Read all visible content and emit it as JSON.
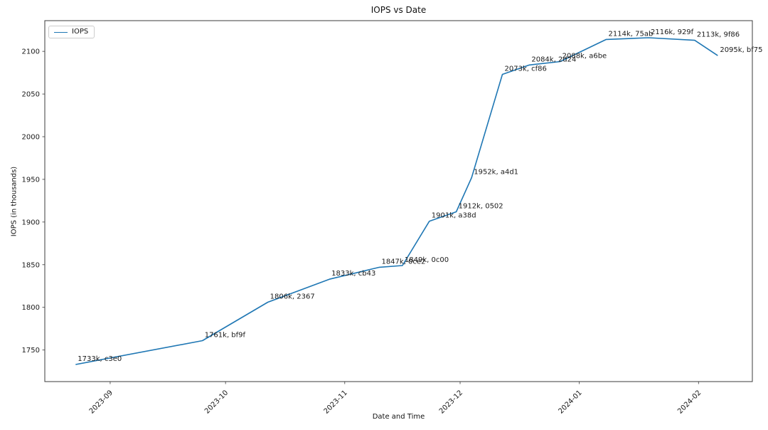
{
  "chart_data": {
    "type": "line",
    "title": "IOPS vs Date",
    "xlabel": "Date and Time",
    "ylabel": "IOPS (in thousands)",
    "legend": {
      "position": "upper-left",
      "entries": [
        {
          "label": "IOPS",
          "color": "#1f77b4"
        }
      ]
    },
    "line_color": "#1f77b4",
    "grid": false,
    "background": "#ffffff",
    "xlim": [
      "2023-08-15",
      "2024-02-15"
    ],
    "ylim": [
      1713,
      2136
    ],
    "x_ticks": [
      {
        "label": "2023-09",
        "date": "2023-09-01"
      },
      {
        "label": "2023-10",
        "date": "2023-10-01"
      },
      {
        "label": "2023-11",
        "date": "2023-11-01"
      },
      {
        "label": "2023-12",
        "date": "2023-12-01"
      },
      {
        "label": "2024-01",
        "date": "2024-01-01"
      },
      {
        "label": "2024-02",
        "date": "2024-02-01"
      }
    ],
    "y_ticks": [
      1750,
      1800,
      1850,
      1900,
      1950,
      2000,
      2050,
      2100
    ],
    "points": [
      {
        "date": "2023-08-23",
        "iops_k": 1733,
        "label": "1733k, c3e0"
      },
      {
        "date": "2023-09-25",
        "iops_k": 1761,
        "label": "1761k, bf9f"
      },
      {
        "date": "2023-10-12",
        "iops_k": 1806,
        "label": "1806k, 2367"
      },
      {
        "date": "2023-10-28",
        "iops_k": 1833,
        "label": "1833k, cb43"
      },
      {
        "date": "2023-11-10",
        "iops_k": 1847,
        "label": "1847k, 0ce2"
      },
      {
        "date": "2023-11-16",
        "iops_k": 1849,
        "label": "1849k, 0c00"
      },
      {
        "date": "2023-11-23",
        "iops_k": 1901,
        "label": "1901k, a38d"
      },
      {
        "date": "2023-11-30",
        "iops_k": 1912,
        "label": "1912k, 0502"
      },
      {
        "date": "2023-12-04",
        "iops_k": 1952,
        "label": "1952k, a4d1"
      },
      {
        "date": "2023-12-12",
        "iops_k": 2073,
        "label": "2073k, cf86"
      },
      {
        "date": "2023-12-19",
        "iops_k": 2084,
        "label": "2084k, 2d24"
      },
      {
        "date": "2023-12-27",
        "iops_k": 2088,
        "label": "2088k, a6be"
      },
      {
        "date": "2024-01-08",
        "iops_k": 2114,
        "label": "2114k, 75ab"
      },
      {
        "date": "2024-01-19",
        "iops_k": 2116,
        "label": "2116k, 929f"
      },
      {
        "date": "2024-01-31",
        "iops_k": 2113,
        "label": "2113k, 9f86"
      },
      {
        "date": "2024-02-06",
        "iops_k": 2095,
        "label": "2095k, bf75"
      }
    ]
  }
}
